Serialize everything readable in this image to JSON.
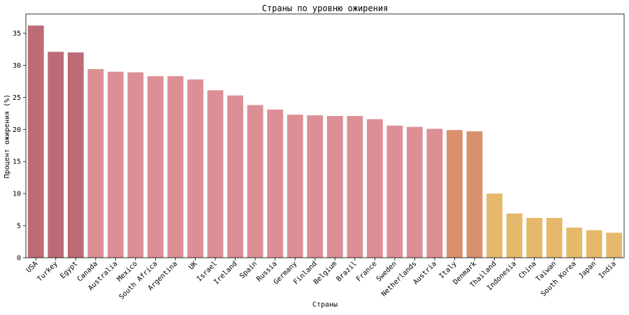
{
  "chart_data": {
    "type": "bar",
    "title": "Страны по уровню ожирения",
    "xlabel": "Страны",
    "ylabel": "Процент ожирения (%)",
    "ylim": [
      0,
      38
    ],
    "yticks": [
      0,
      5,
      10,
      15,
      20,
      25,
      30,
      35
    ],
    "grid": false,
    "categories": [
      "USA",
      "Turkey",
      "Egypt",
      "Canada",
      "Australia",
      "Mexico",
      "South Africa",
      "Argentina",
      "UK",
      "Israel",
      "Ireland",
      "Spain",
      "Russia",
      "Germany",
      "Finland",
      "Belgium",
      "Brazil",
      "France",
      "Sweden",
      "Netherlands",
      "Austria",
      "Italy",
      "Denmark",
      "Thailand",
      "Indonesia",
      "China",
      "Taiwan",
      "South Korea",
      "Japan",
      "India"
    ],
    "values": [
      36.2,
      32.1,
      32.0,
      29.4,
      29.0,
      28.9,
      28.3,
      28.3,
      27.8,
      26.1,
      25.3,
      23.8,
      23.1,
      22.3,
      22.2,
      22.1,
      22.1,
      21.6,
      20.6,
      20.4,
      20.1,
      19.9,
      19.7,
      10.0,
      6.9,
      6.2,
      6.2,
      4.7,
      4.3,
      3.9
    ],
    "colors": [
      "#bd6b76",
      "#bd6b76",
      "#bd6b76",
      "#dd8f96",
      "#dd8f96",
      "#dd8f96",
      "#dd8f96",
      "#dd8f96",
      "#dd8f96",
      "#dd8f96",
      "#dd8f96",
      "#dd8f96",
      "#dd8f96",
      "#dd8f96",
      "#dd8f96",
      "#dd8f96",
      "#dd8f96",
      "#dd8f96",
      "#dd8f96",
      "#dd8f96",
      "#dd8f96",
      "#d8916b",
      "#d8916b",
      "#e6b86b",
      "#e6b86b",
      "#e6b86b",
      "#e6b86b",
      "#e6b86b",
      "#e6b86b",
      "#e6b86b"
    ]
  }
}
